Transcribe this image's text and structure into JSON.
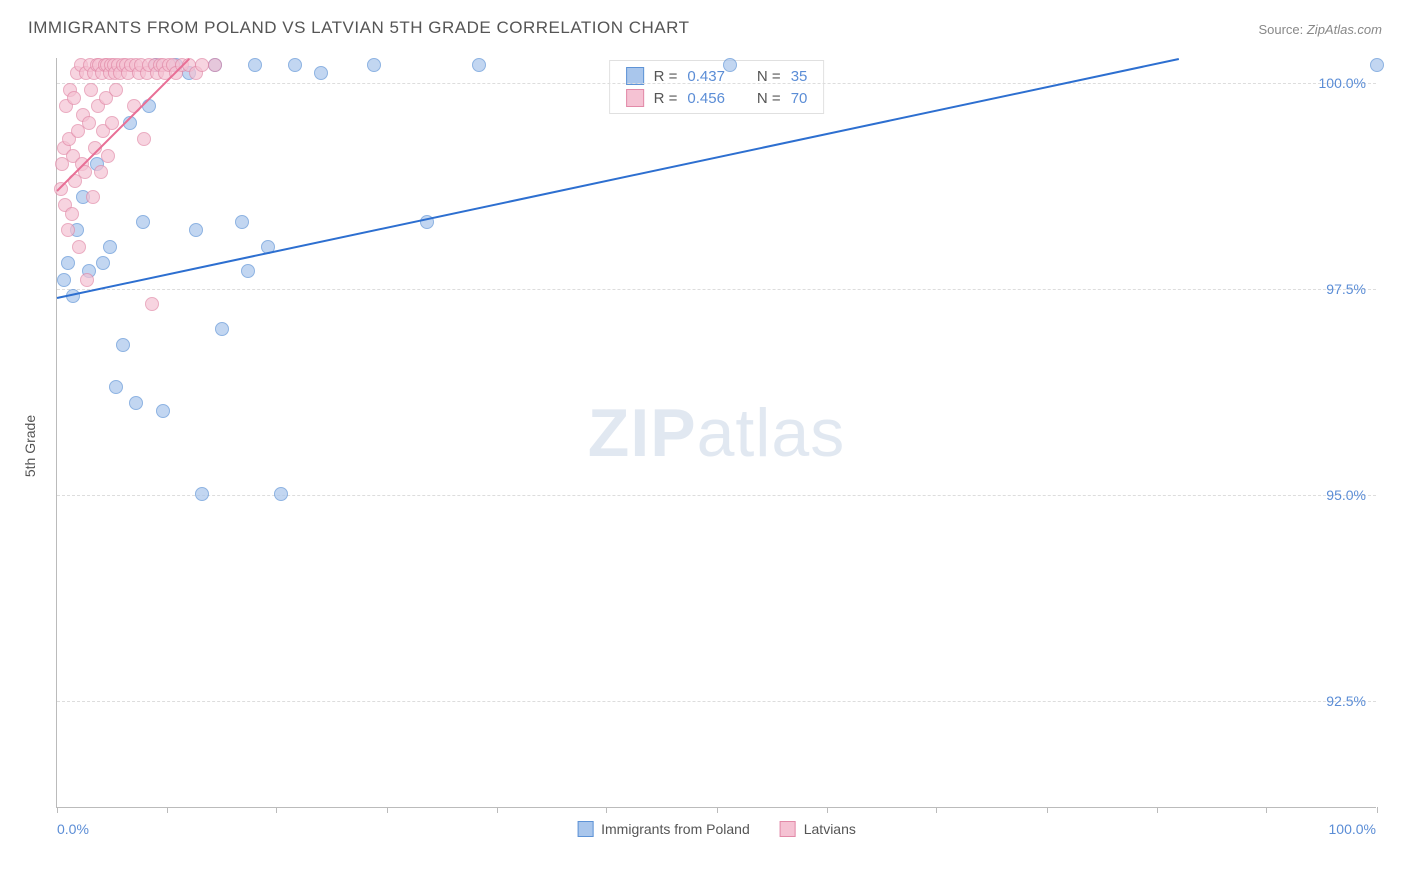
{
  "title": "IMMIGRANTS FROM POLAND VS LATVIAN 5TH GRADE CORRELATION CHART",
  "source_label": "Source: ",
  "source_value": "ZipAtlas.com",
  "watermark_bold": "ZIP",
  "watermark_light": "atlas",
  "y_axis_label": "5th Grade",
  "chart": {
    "type": "scatter",
    "background_color": "#ffffff",
    "grid_color": "#dddddd",
    "axis_color": "#bbbbbb",
    "tick_label_color": "#5b8dd6",
    "xlim": [
      0,
      100
    ],
    "ylim": [
      91.2,
      100.3
    ],
    "x_ticks": [
      0,
      8.3,
      16.6,
      25,
      33.3,
      41.6,
      50,
      58.3,
      66.6,
      75,
      83.3,
      91.6,
      100
    ],
    "x_min_label": "0.0%",
    "x_max_label": "100.0%",
    "y_ticks": [
      {
        "v": 92.5,
        "label": "92.5%"
      },
      {
        "v": 95.0,
        "label": "95.0%"
      },
      {
        "v": 97.5,
        "label": "97.5%"
      },
      {
        "v": 100.0,
        "label": "100.0%"
      }
    ],
    "marker_radius": 7,
    "marker_fill_opacity": 0.35,
    "line_width": 2,
    "series": [
      {
        "name": "Immigrants from Poland",
        "color_stroke": "#5e93d6",
        "color_fill": "#a9c6ec",
        "line_color": "#2d6fd0",
        "R_label": "R = ",
        "R_value": "0.437",
        "N_label": "N = ",
        "N_value": "35",
        "trend": {
          "x1": 0,
          "y1": 97.4,
          "x2": 85,
          "y2": 100.3
        },
        "points": [
          [
            0.5,
            97.6
          ],
          [
            0.8,
            97.8
          ],
          [
            1.2,
            97.4
          ],
          [
            1.5,
            98.2
          ],
          [
            2,
            98.6
          ],
          [
            2.4,
            97.7
          ],
          [
            3,
            99.0
          ],
          [
            3.5,
            97.8
          ],
          [
            4,
            98.0
          ],
          [
            4.5,
            96.3
          ],
          [
            5,
            96.8
          ],
          [
            5.5,
            99.5
          ],
          [
            6,
            96.1
          ],
          [
            6.5,
            98.3
          ],
          [
            7,
            99.7
          ],
          [
            7.5,
            100.2
          ],
          [
            8,
            96.0
          ],
          [
            9,
            100.2
          ],
          [
            10,
            100.1
          ],
          [
            10.5,
            98.2
          ],
          [
            11,
            95.0
          ],
          [
            12,
            100.2
          ],
          [
            12.5,
            97.0
          ],
          [
            14,
            98.3
          ],
          [
            14.5,
            97.7
          ],
          [
            15,
            100.2
          ],
          [
            16,
            98.0
          ],
          [
            17,
            95.0
          ],
          [
            18,
            100.2
          ],
          [
            20,
            100.1
          ],
          [
            24,
            100.2
          ],
          [
            28,
            98.3
          ],
          [
            32,
            100.2
          ],
          [
            51,
            100.2
          ],
          [
            100,
            100.2
          ]
        ]
      },
      {
        "name": "Latvians",
        "color_stroke": "#e28aa8",
        "color_fill": "#f5c2d3",
        "line_color": "#e86f96",
        "R_label": "R = ",
        "R_value": "0.456",
        "N_label": "N = ",
        "N_value": "70",
        "trend": {
          "x1": 0,
          "y1": 98.7,
          "x2": 10,
          "y2": 100.3
        },
        "points": [
          [
            0.3,
            98.7
          ],
          [
            0.4,
            99.0
          ],
          [
            0.5,
            99.2
          ],
          [
            0.6,
            98.5
          ],
          [
            0.7,
            99.7
          ],
          [
            0.8,
            98.2
          ],
          [
            0.9,
            99.3
          ],
          [
            1.0,
            99.9
          ],
          [
            1.1,
            98.4
          ],
          [
            1.2,
            99.1
          ],
          [
            1.3,
            99.8
          ],
          [
            1.4,
            98.8
          ],
          [
            1.5,
            100.1
          ],
          [
            1.6,
            99.4
          ],
          [
            1.7,
            98.0
          ],
          [
            1.8,
            100.2
          ],
          [
            1.9,
            99.0
          ],
          [
            2.0,
            99.6
          ],
          [
            2.1,
            98.9
          ],
          [
            2.2,
            100.1
          ],
          [
            2.3,
            97.6
          ],
          [
            2.4,
            99.5
          ],
          [
            2.5,
            100.2
          ],
          [
            2.6,
            99.9
          ],
          [
            2.7,
            98.6
          ],
          [
            2.8,
            100.1
          ],
          [
            2.9,
            99.2
          ],
          [
            3.0,
            100.2
          ],
          [
            3.1,
            99.7
          ],
          [
            3.2,
            100.2
          ],
          [
            3.3,
            98.9
          ],
          [
            3.4,
            100.1
          ],
          [
            3.5,
            99.4
          ],
          [
            3.6,
            100.2
          ],
          [
            3.7,
            99.8
          ],
          [
            3.8,
            100.2
          ],
          [
            3.9,
            99.1
          ],
          [
            4.0,
            100.1
          ],
          [
            4.1,
            100.2
          ],
          [
            4.2,
            99.5
          ],
          [
            4.3,
            100.2
          ],
          [
            4.4,
            100.1
          ],
          [
            4.5,
            99.9
          ],
          [
            4.6,
            100.2
          ],
          [
            4.8,
            100.1
          ],
          [
            5.0,
            100.2
          ],
          [
            5.2,
            100.2
          ],
          [
            5.4,
            100.1
          ],
          [
            5.6,
            100.2
          ],
          [
            5.8,
            99.7
          ],
          [
            6.0,
            100.2
          ],
          [
            6.2,
            100.1
          ],
          [
            6.4,
            100.2
          ],
          [
            6.6,
            99.3
          ],
          [
            6.8,
            100.1
          ],
          [
            7.0,
            100.2
          ],
          [
            7.2,
            97.3
          ],
          [
            7.4,
            100.2
          ],
          [
            7.6,
            100.1
          ],
          [
            7.8,
            100.2
          ],
          [
            8.0,
            100.2
          ],
          [
            8.2,
            100.1
          ],
          [
            8.5,
            100.2
          ],
          [
            8.8,
            100.2
          ],
          [
            9.0,
            100.1
          ],
          [
            9.5,
            100.2
          ],
          [
            10.0,
            100.2
          ],
          [
            10.5,
            100.1
          ],
          [
            11.0,
            100.2
          ],
          [
            12.0,
            100.2
          ]
        ]
      }
    ]
  }
}
